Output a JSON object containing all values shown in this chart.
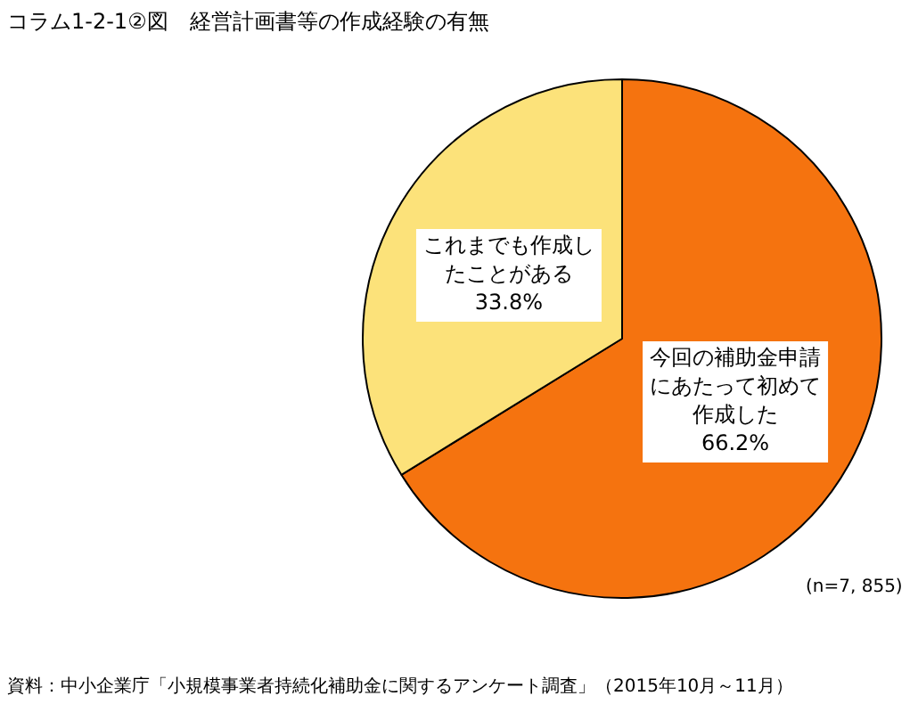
{
  "chart_data": {
    "type": "pie",
    "title": "コラム1-2-1②図　経営計画書等の作成経験の有無",
    "categories": [
      "今回の補助金申請にあたって初めて作成した",
      "これまでも作成したことがある"
    ],
    "values": [
      66.2,
      33.8
    ],
    "value_labels": [
      "66.2%",
      "33.8%"
    ],
    "colors": [
      "#f5730f",
      "#fce27a"
    ],
    "legend": false,
    "annotations": [
      "(n=7, 855)",
      "資料：中小企業庁「小規模事業者持続化補助金に関するアンケート調査」（2015年10月～11月）"
    ]
  }
}
